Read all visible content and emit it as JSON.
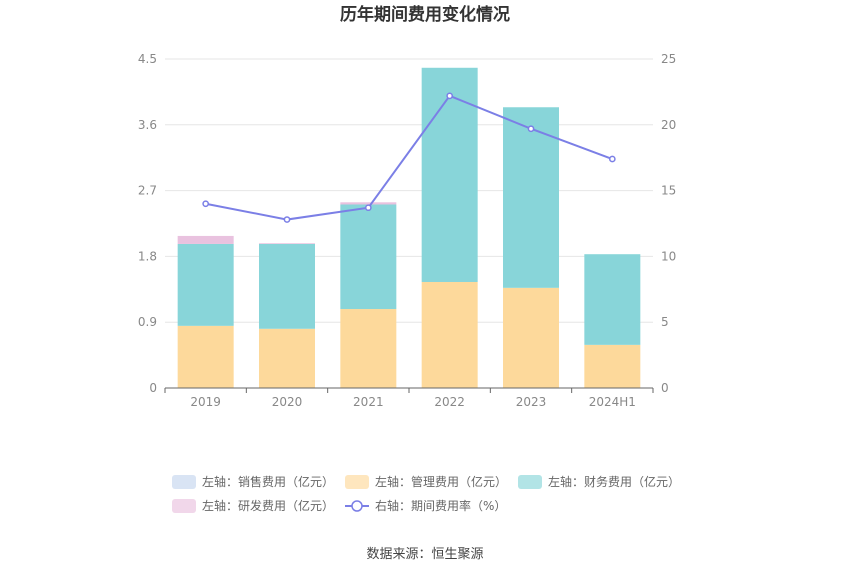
{
  "chart_data": {
    "type": "bar",
    "title": "历年期间费用变化情况",
    "categories": [
      "2019",
      "2020",
      "2021",
      "2022",
      "2023",
      "2024H1"
    ],
    "series": [
      {
        "name": "左轴：销售费用（亿元）",
        "axis": "left",
        "kind": "stacked-bar",
        "color": "#c5d6ee",
        "values": [
          0,
          0,
          0,
          0,
          0,
          0
        ]
      },
      {
        "name": "左轴：管理费用（亿元）",
        "axis": "left",
        "kind": "stacked-bar",
        "color": "#fdd99b",
        "values": [
          0.85,
          0.81,
          1.08,
          1.45,
          1.37,
          0.59
        ]
      },
      {
        "name": "左轴：财务费用（亿元）",
        "axis": "left",
        "kind": "stacked-bar",
        "color": "#88d5d9",
        "values": [
          1.12,
          1.16,
          1.43,
          2.93,
          2.47,
          1.24
        ]
      },
      {
        "name": "左轴：研发费用（亿元）",
        "axis": "left",
        "kind": "stacked-bar",
        "color": "#e9c2df",
        "values": [
          0.11,
          0.01,
          0.03,
          0,
          0,
          0
        ]
      },
      {
        "name": "右轴：期间费用率（%）",
        "axis": "right",
        "kind": "line",
        "color": "#7b7fe6",
        "values": [
          14.0,
          12.8,
          13.7,
          22.2,
          19.7,
          17.4
        ]
      }
    ],
    "left_axis": {
      "ticks": [
        "0",
        "0.9",
        "1.8",
        "2.7",
        "3.6",
        "4.5"
      ],
      "ylim": [
        0,
        4.5
      ]
    },
    "right_axis": {
      "ticks": [
        "0",
        "5",
        "10",
        "15",
        "20",
        "25"
      ],
      "ylim": [
        0,
        25
      ]
    },
    "grid": true,
    "legend_position": "bottom",
    "source": "数据来源：恒生聚源"
  }
}
